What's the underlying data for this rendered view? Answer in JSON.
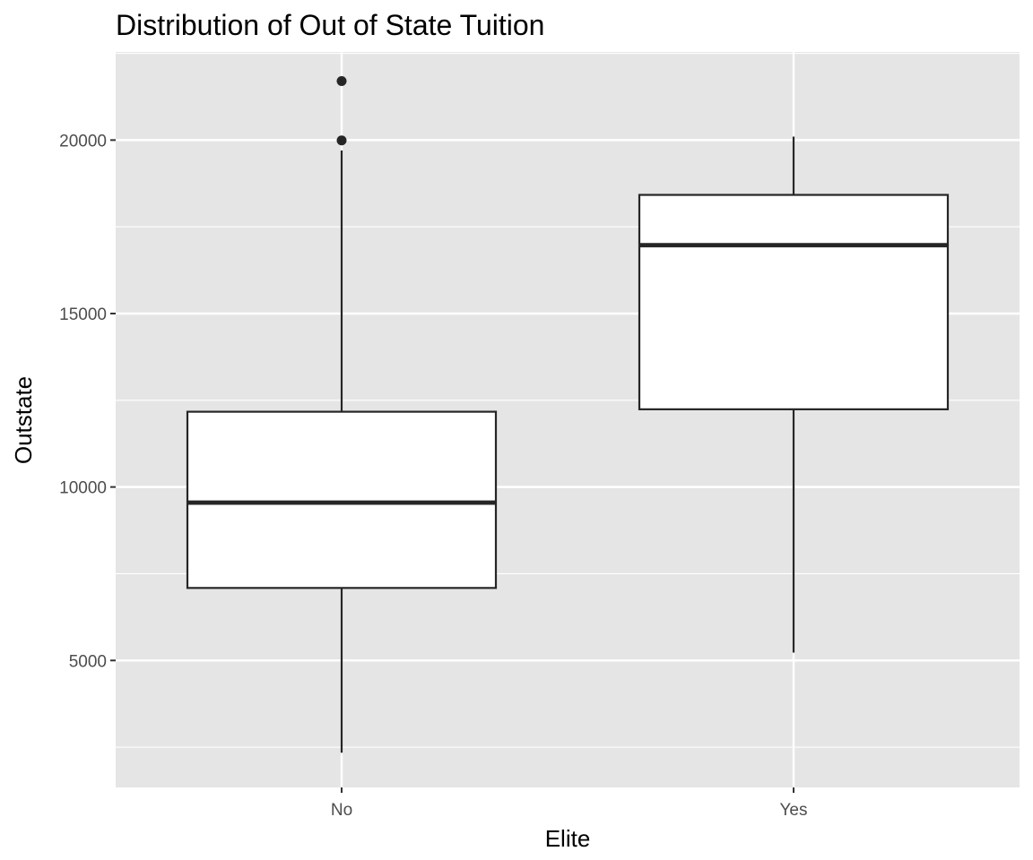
{
  "chart_data": {
    "type": "box",
    "title": "Distribution of Out of State Tuition",
    "xlabel": "Elite",
    "ylabel": "Outstate",
    "categories": [
      "No",
      "Yes"
    ],
    "boxes": [
      {
        "category": "No",
        "whisker_low": 2340,
        "q1": 7090,
        "median": 9550,
        "q3": 12170,
        "whisker_high": 19700,
        "outliers": [
          19990,
          21700
        ]
      },
      {
        "category": "Yes",
        "whisker_low": 5225,
        "q1": 12240,
        "median": 16970,
        "q3": 18420,
        "whisker_high": 20100,
        "outliers": []
      }
    ],
    "ylim": [
      1340,
      22540
    ],
    "yticks": [
      5000,
      10000,
      15000,
      20000
    ],
    "ytick_labels": [
      "5000",
      "10000",
      "15000",
      "20000"
    ],
    "grid": true,
    "colors": {
      "panel_background": "#e5e5e5",
      "grid_line": "#ffffff",
      "box_fill": "#ffffff",
      "box_stroke": "#262626",
      "outlier_fill": "#262626",
      "tick_label": "#4d4d4d",
      "text": "#000000"
    }
  }
}
